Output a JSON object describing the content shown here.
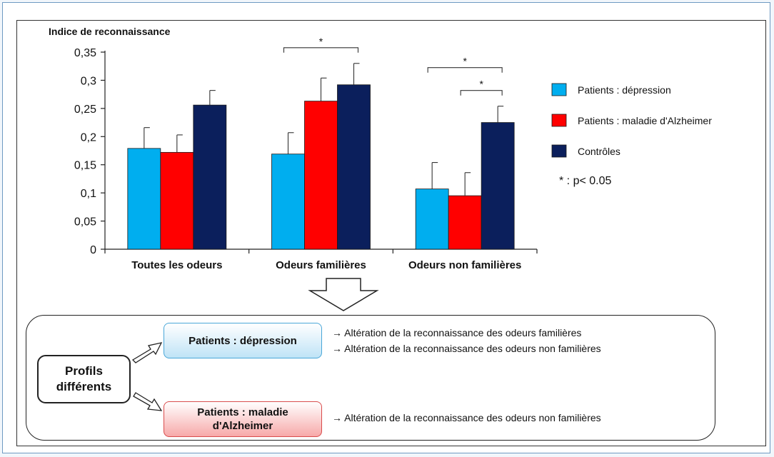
{
  "chart_data": {
    "type": "bar",
    "ylabel": "Indice de reconnaissance",
    "ylim": [
      0,
      0.35
    ],
    "yticks": [
      "0",
      "0,05",
      "0,1",
      "0,15",
      "0,2",
      "0,25",
      "0,3",
      "0,35"
    ],
    "categories": [
      "Toutes les odeurs",
      "Odeurs familières",
      "Odeurs non familières"
    ],
    "series": [
      {
        "name": "Patients : dépression",
        "color": "#00aeef",
        "values": [
          0.179,
          0.169,
          0.107
        ],
        "errors": [
          0.037,
          0.038,
          0.047
        ]
      },
      {
        "name": "Patients : maladie d'Alzheimer",
        "color": "#ff0000",
        "values": [
          0.172,
          0.263,
          0.095
        ],
        "errors": [
          0.031,
          0.041,
          0.041
        ]
      },
      {
        "name": "Contrôles",
        "color": "#0b1f5c",
        "values": [
          0.256,
          0.292,
          0.225
        ],
        "errors": [
          0.026,
          0.038,
          0.029
        ]
      }
    ],
    "significance": [
      {
        "category": "Odeurs familières",
        "from": "Patients : dépression",
        "to": "Contrôles",
        "label": "*"
      },
      {
        "category": "Odeurs non familières",
        "from": "Patients : dépression",
        "to": "Contrôles",
        "label": "*"
      },
      {
        "category": "Odeurs non familières",
        "from": "Patients : maladie d'Alzheimer",
        "to": "Contrôles",
        "label": "*"
      }
    ],
    "legend_note": "* : p< 0.05",
    "legend_position": "right"
  },
  "summary": {
    "profils_line1": "Profils",
    "profils_line2": "différents",
    "depression_label": "Patients : dépression",
    "alzheimer_line1": "Patients : maladie",
    "alzheimer_line2": "d'Alzheimer",
    "depression_effects": [
      "→ Altération de la reconnaissance des odeurs familières",
      "→ Altération de la reconnaissance des odeurs non familières"
    ],
    "alzheimer_effects": [
      "→ Altération de la reconnaissance des odeurs non familières"
    ]
  }
}
